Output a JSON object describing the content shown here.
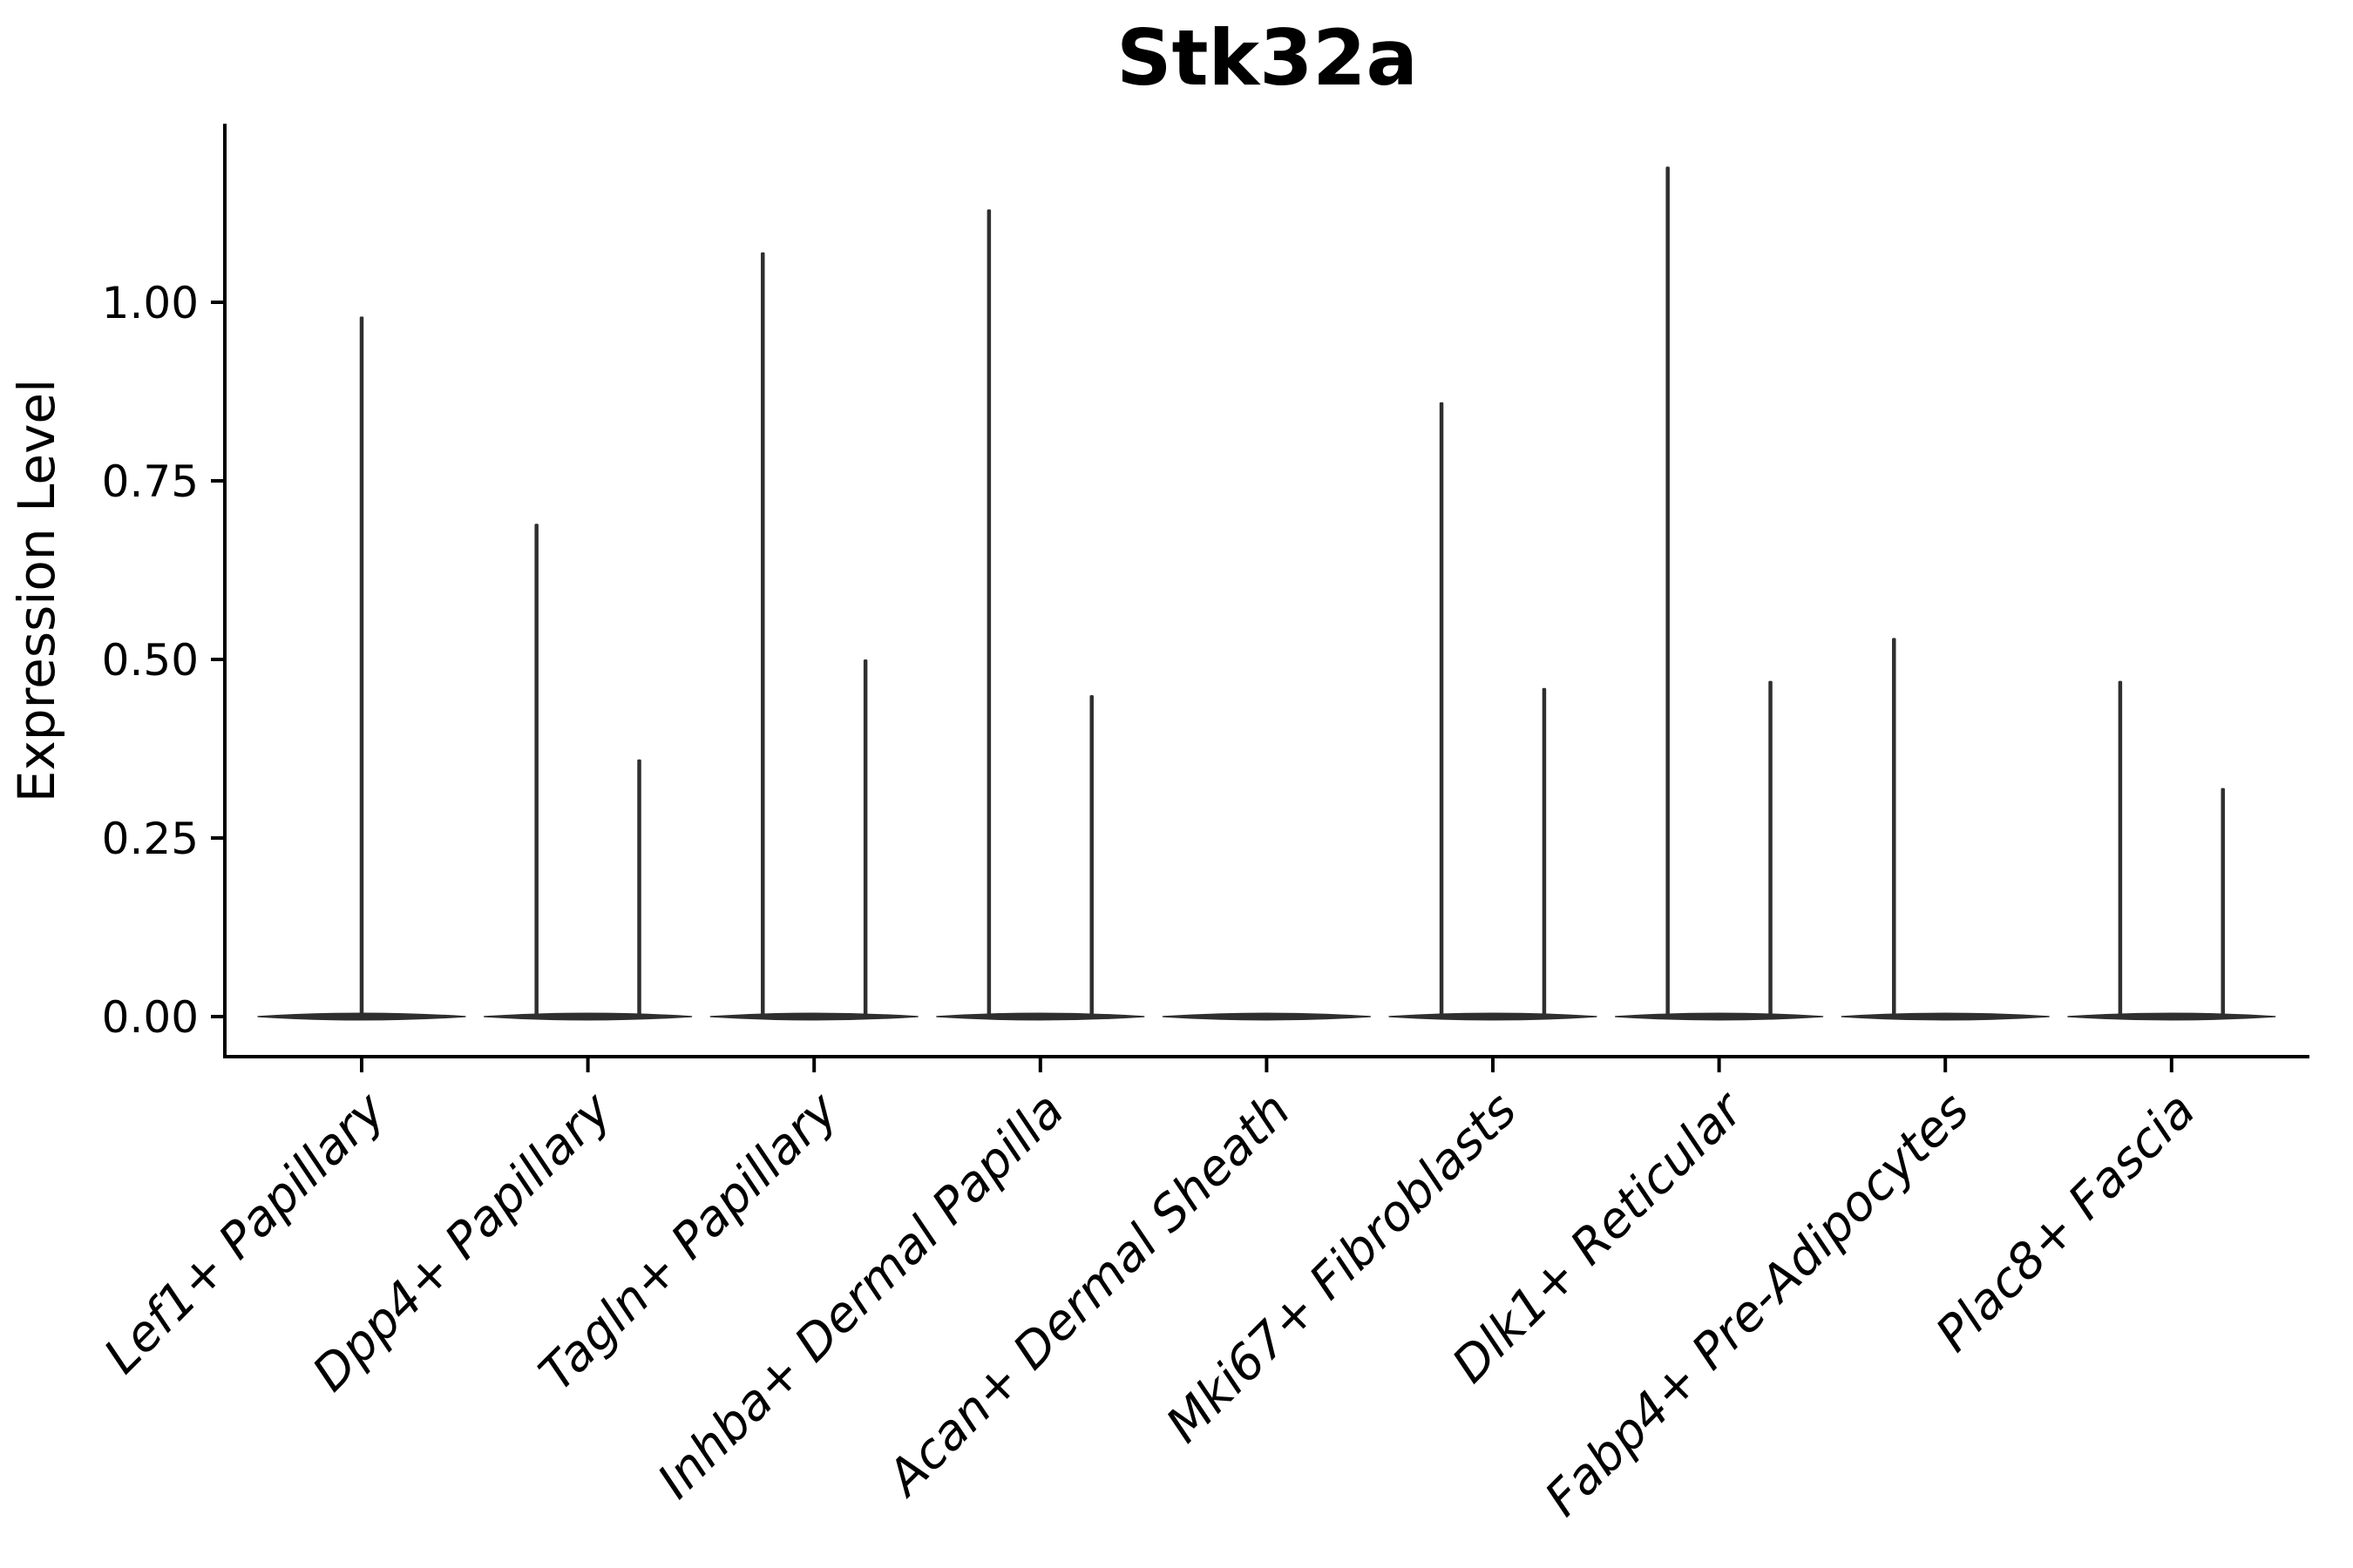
{
  "figure": {
    "title": "Stk32a",
    "ylabel": "Expression Level",
    "xlabel": ""
  },
  "chart_data": {
    "type": "violin",
    "title": "Stk32a",
    "ylabel": "Expression Level",
    "xlabel": "",
    "grid": false,
    "legend": false,
    "baseline_value": 0.0,
    "ylim": [
      -0.06,
      1.25
    ],
    "yticks": [
      {
        "value": 0.0,
        "label": "0.00"
      },
      {
        "value": 0.25,
        "label": "0.25"
      },
      {
        "value": 0.5,
        "label": "0.50"
      },
      {
        "value": 0.75,
        "label": "0.75"
      },
      {
        "value": 1.0,
        "label": "1.00"
      }
    ],
    "categories": [
      "Lef1+ Papillary",
      "Dpp4+ Papillary",
      "Tagln+ Papillary",
      "Inhba+ Dermal Papilla",
      "Acan+ Dermal Sheath",
      "Mki67+ Fibroblasts",
      "Dlk1+ Reticular",
      "Fabp4+ Pre-Adipocytes",
      "Plac8+ Fascia"
    ],
    "violins": [
      {
        "category": "Lef1+ Papillary",
        "body_at_zero": true,
        "spikes": [
          {
            "offset": 0.0,
            "max_expression": 0.98
          }
        ]
      },
      {
        "category": "Dpp4+ Papillary",
        "body_at_zero": true,
        "spikes": [
          {
            "offset": -0.227,
            "max_expression": 0.69
          },
          {
            "offset": 0.227,
            "max_expression": 0.36
          }
        ]
      },
      {
        "category": "Tagln+ Papillary",
        "body_at_zero": true,
        "spikes": [
          {
            "offset": -0.227,
            "max_expression": 1.07
          },
          {
            "offset": 0.227,
            "max_expression": 0.5
          }
        ]
      },
      {
        "category": "Inhba+ Dermal Papilla",
        "body_at_zero": true,
        "spikes": [
          {
            "offset": -0.227,
            "max_expression": 1.13
          },
          {
            "offset": 0.227,
            "max_expression": 0.45
          }
        ]
      },
      {
        "category": "Acan+ Dermal Sheath",
        "body_at_zero": true,
        "spikes": []
      },
      {
        "category": "Mki67+ Fibroblasts",
        "body_at_zero": true,
        "spikes": [
          {
            "offset": -0.227,
            "max_expression": 0.86
          },
          {
            "offset": 0.227,
            "max_expression": 0.46
          }
        ]
      },
      {
        "category": "Dlk1+ Reticular",
        "body_at_zero": true,
        "spikes": [
          {
            "offset": -0.227,
            "max_expression": 1.19
          },
          {
            "offset": 0.227,
            "max_expression": 0.47
          }
        ]
      },
      {
        "category": "Fabp4+ Pre-Adipocytes",
        "body_at_zero": true,
        "spikes": [
          {
            "offset": -0.227,
            "max_expression": 0.53
          }
        ]
      },
      {
        "category": "Plac8+ Fascia",
        "body_at_zero": true,
        "spikes": [
          {
            "offset": -0.227,
            "max_expression": 0.47
          },
          {
            "offset": 0.227,
            "max_expression": 0.32
          }
        ]
      }
    ],
    "violin_body_halfwidth": 0.458,
    "colors": {
      "violin": "#2f2f2f",
      "axis": "#000000",
      "text": "#000000",
      "background": "#ffffff"
    }
  }
}
